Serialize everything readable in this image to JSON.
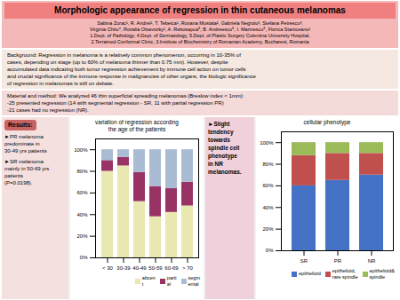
{
  "title": "Morphologic appearance of regression in thin cutaneous melanomas",
  "subtitle": "Sabina Zurac¹, R. Andrei¹, T. Tebeica¹, Roxana Mustata², Gabriela Negroiu³, Stefana Petrescu³,\nVirginia Chitu⁴, Rozalia Olsavszky¹, A. Rebosapca⁵, B. Andreescu⁵, I. Marinescu⁵, Florica Staniceanu¹\n1.Dept. of Pathology, 4.Dept. of Dermatology, 5.Dept. of Plastic Surgery Colentina University Hospital,\n2.Terramed Conformal Clinic, 3.Institute of Biochemistry of Romanian Academy, Bucharest, Romania",
  "annotations": [
    "Background: Regression in melanoma is a relatively common phenomenon, occurring in 10-35% of\ncases, depending on stage (up to 60% of melanoma thinner than 0.75 mm). However, despite\naccumulated data indicating both tumor regression achievement by immune cell action on tumor cells\nand crucial significance of the immune response in malignancies of other organs, the biologic significance\nof regression in melanomas is still on debate.",
    "Material and method: We analyzed 46 thin superficial spreading melanomas (Breslow index < 1mm):\n-25 presented regression (14 with segmental regression - SR, 11 with partial regression PR)\n-21 cases had no regression (NR).",
    "Results:",
    "►PR melanoma\npredominate in\n30-49 yrs patients",
    "►SR melanoma\nmainly in 50-69 yrs\npatients\n(P=0.0198).",
    "►Slight\ntendency\ntowards\nspindle cell\nphenotype\nin NR\nmelanomas."
  ],
  "chart_data": [
    {
      "type": "bar",
      "stacked": true,
      "title": "variation of regression according\nthe age of the patients",
      "categories": [
        "< 30",
        "30-39",
        "40-49",
        "50-59",
        "60-69",
        "> 70"
      ],
      "series": [
        {
          "name": "abcen\nt",
          "color": "#e8e8b0",
          "values": [
            80,
            85,
            52,
            38,
            42,
            48
          ]
        },
        {
          "name": "parti\nal",
          "color": "#993366",
          "values": [
            10,
            8,
            27,
            28,
            22,
            22
          ]
        },
        {
          "name": "segm\nental",
          "color": "#aabbd4",
          "values": [
            10,
            7,
            21,
            34,
            36,
            30
          ]
        }
      ],
      "ylim": [
        0,
        110
      ],
      "yticks": [
        {
          "value": 0,
          "label": "0%"
        },
        {
          "value": 20,
          "label": "20%"
        },
        {
          "value": 40,
          "label": "40%"
        },
        {
          "value": 60,
          "label": "60%"
        },
        {
          "value": 80,
          "label": "80%"
        },
        {
          "value": 100,
          "label": "100%"
        }
      ],
      "legend": "lower right"
    },
    {
      "type": "bar",
      "stacked": true,
      "title": "cellular phenotype",
      "categories": [
        "SR",
        "PR",
        "NR"
      ],
      "series": [
        {
          "name": "epithelioid",
          "color": "#4472c4",
          "values": [
            60,
            65,
            70
          ]
        },
        {
          "name": "epithelioid,\nrare spindle",
          "color": "#c0504d",
          "values": [
            28,
            25,
            20
          ]
        },
        {
          "name": "epithelioid&\nspindle",
          "color": "#9bbb59",
          "values": [
            12,
            10,
            10
          ]
        }
      ],
      "ylim": [
        0,
        110
      ],
      "yticks": [
        {
          "value": 0,
          "label": "0%"
        },
        {
          "value": 20,
          "label": "20%"
        },
        {
          "value": 40,
          "label": "40%"
        },
        {
          "value": 60,
          "label": "60%"
        },
        {
          "value": 80,
          "label": "80%"
        },
        {
          "value": 100,
          "label": "100%"
        }
      ],
      "legend": "lower right"
    }
  ]
}
